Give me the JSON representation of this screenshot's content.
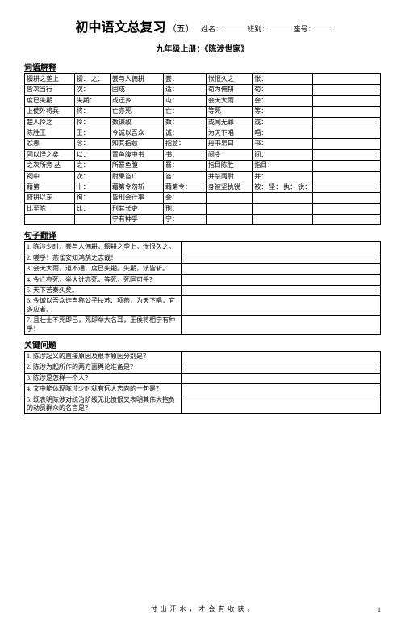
{
  "title": "初中语文总复习",
  "title_suffix": "（五）",
  "header_labels": {
    "name": "姓名：",
    "class": "班别：",
    "seat": "座号："
  },
  "subtitle": "九年级上册：《陈涉世家》",
  "sections": {
    "vocab": "词语解释",
    "sentence": "句子翻译",
    "question": "关键问题"
  },
  "vocab_rows": [
    [
      "辍耕之垄上",
      "辍：\n之：",
      "尝与人佣耕",
      "尝：",
      "怅恨久之",
      "怅：",
      ""
    ],
    [
      "皆次当行",
      "次：",
      "固成",
      "适：",
      "苟为佣耕",
      "苟：",
      ""
    ],
    [
      "度已失期",
      "失期：",
      "或迂乡",
      "屯：",
      "会天大雨",
      "会：",
      ""
    ],
    [
      "上使外将兵",
      "将：",
      "亡亦死",
      "亡：",
      "等死",
      "等：",
      ""
    ],
    [
      "楚人怜之",
      "怜：",
      "数谏故",
      "数：",
      "或闻无罪",
      "或：",
      ""
    ],
    [
      "陈胜王",
      "王：",
      "今诚以吾众",
      "诚：",
      "为天下唱",
      "唱：",
      ""
    ],
    [
      "忿恚",
      "念：",
      "知其指意",
      "指意：",
      "丹书帛曰",
      "书：",
      ""
    ],
    [
      "固以怪之矣",
      "以：",
      "置鱼腹中书",
      "书：",
      "间令",
      "间：",
      ""
    ],
    [
      "之次所旁 丛",
      "之：",
      "所罾鱼腹",
      "罾：",
      "指目陈胜",
      "指目：",
      ""
    ],
    [
      "祠中",
      "次：",
      "尉果笞广",
      "笞：",
      "并杀两尉",
      "并：",
      ""
    ],
    [
      "藉第",
      "十：",
      "藉第令勿斩",
      "藉第令：",
      "身被坚执锐",
      "被：\n坚：\n执：\n锐：",
      ""
    ],
    [
      "俯耕以东",
      "徇：",
      "皆刑会计事",
      "会：",
      "",
      "",
      ""
    ],
    [
      "比至陈",
      "比：",
      "刑其长吏",
      "刑：",
      "",
      "",
      ""
    ],
    [
      "",
      "",
      "宁有种乎",
      "宁：",
      "",
      "",
      ""
    ]
  ],
  "sentence_rows": [
    [
      "1. 陈涉少时，尝与人佣耕，辍耕之垄上，怅恨久之。",
      ""
    ],
    [
      "2. 嗟乎！燕雀安知鸿鹄之志哉！",
      ""
    ],
    [
      "3. 会天大雨，道不通，度已失期。失期，法皆斩。",
      ""
    ],
    [
      "4. 今亡亦死，举大计亦死，等死，死国可乎？",
      ""
    ],
    [
      "5. 天下苦秦久矣。",
      ""
    ],
    [
      "6. 今诚以吾众诈自称公子扶苏、项燕，为天下唱，宜多应者。",
      ""
    ],
    [
      "7. 且壮士不死即已，死即举大名耳，王侯将相宁有种乎！",
      ""
    ]
  ],
  "question_rows": [
    [
      "1. 陈涉起义的直接原因及根本原因分别是？",
      ""
    ],
    [
      "2. 陈涉为起所作的两方面舆论准备是？",
      ""
    ],
    [
      "3. 陈涉是怎样一个人？",
      ""
    ],
    [
      "4. 文中能体现陈涉少时就有远大志向的一句是？",
      ""
    ],
    [
      "5. 既表明陈涉对统治阶级无比愤恨又表明其伟大抱负的动员群众的名言是？",
      ""
    ]
  ],
  "footer": "付 出 汗 水 ， 才 会 有 收 获 。",
  "page_num": "1"
}
